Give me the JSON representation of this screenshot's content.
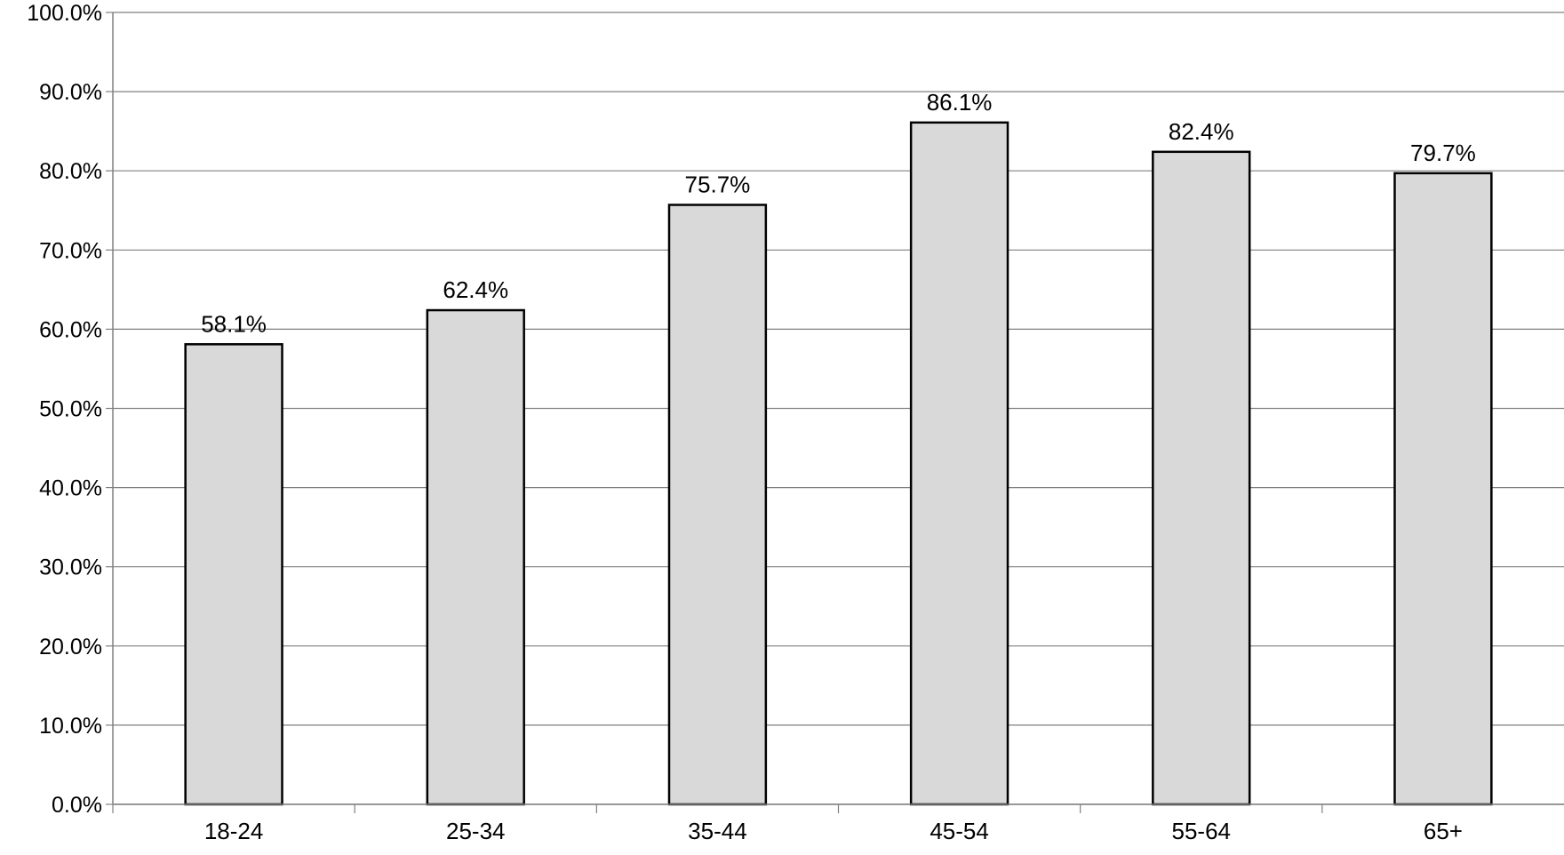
{
  "chart_data": {
    "type": "bar",
    "categories": [
      "18-24",
      "25-34",
      "35-44",
      "45-54",
      "55-64",
      "65+"
    ],
    "values": [
      58.1,
      62.4,
      75.7,
      86.1,
      82.4,
      79.7
    ],
    "value_labels": [
      "58.1%",
      "62.4%",
      "75.7%",
      "86.1%",
      "82.4%",
      "79.7%"
    ],
    "y_ticks": [
      0,
      10,
      20,
      30,
      40,
      50,
      60,
      70,
      80,
      90,
      100
    ],
    "y_tick_labels": [
      "0.0%",
      "10.0%",
      "20.0%",
      "30.0%",
      "40.0%",
      "50.0%",
      "60.0%",
      "70.0%",
      "80.0%",
      "90.0%",
      "100.0%"
    ],
    "ylim": [
      0,
      100
    ],
    "grid": true,
    "legend": "none",
    "title": "",
    "xlabel": "",
    "ylabel": "",
    "colors": {
      "bar_fill": "#d9d9d9",
      "bar_stroke": "#000000",
      "grid": "#808080",
      "axis": "#808080"
    }
  }
}
